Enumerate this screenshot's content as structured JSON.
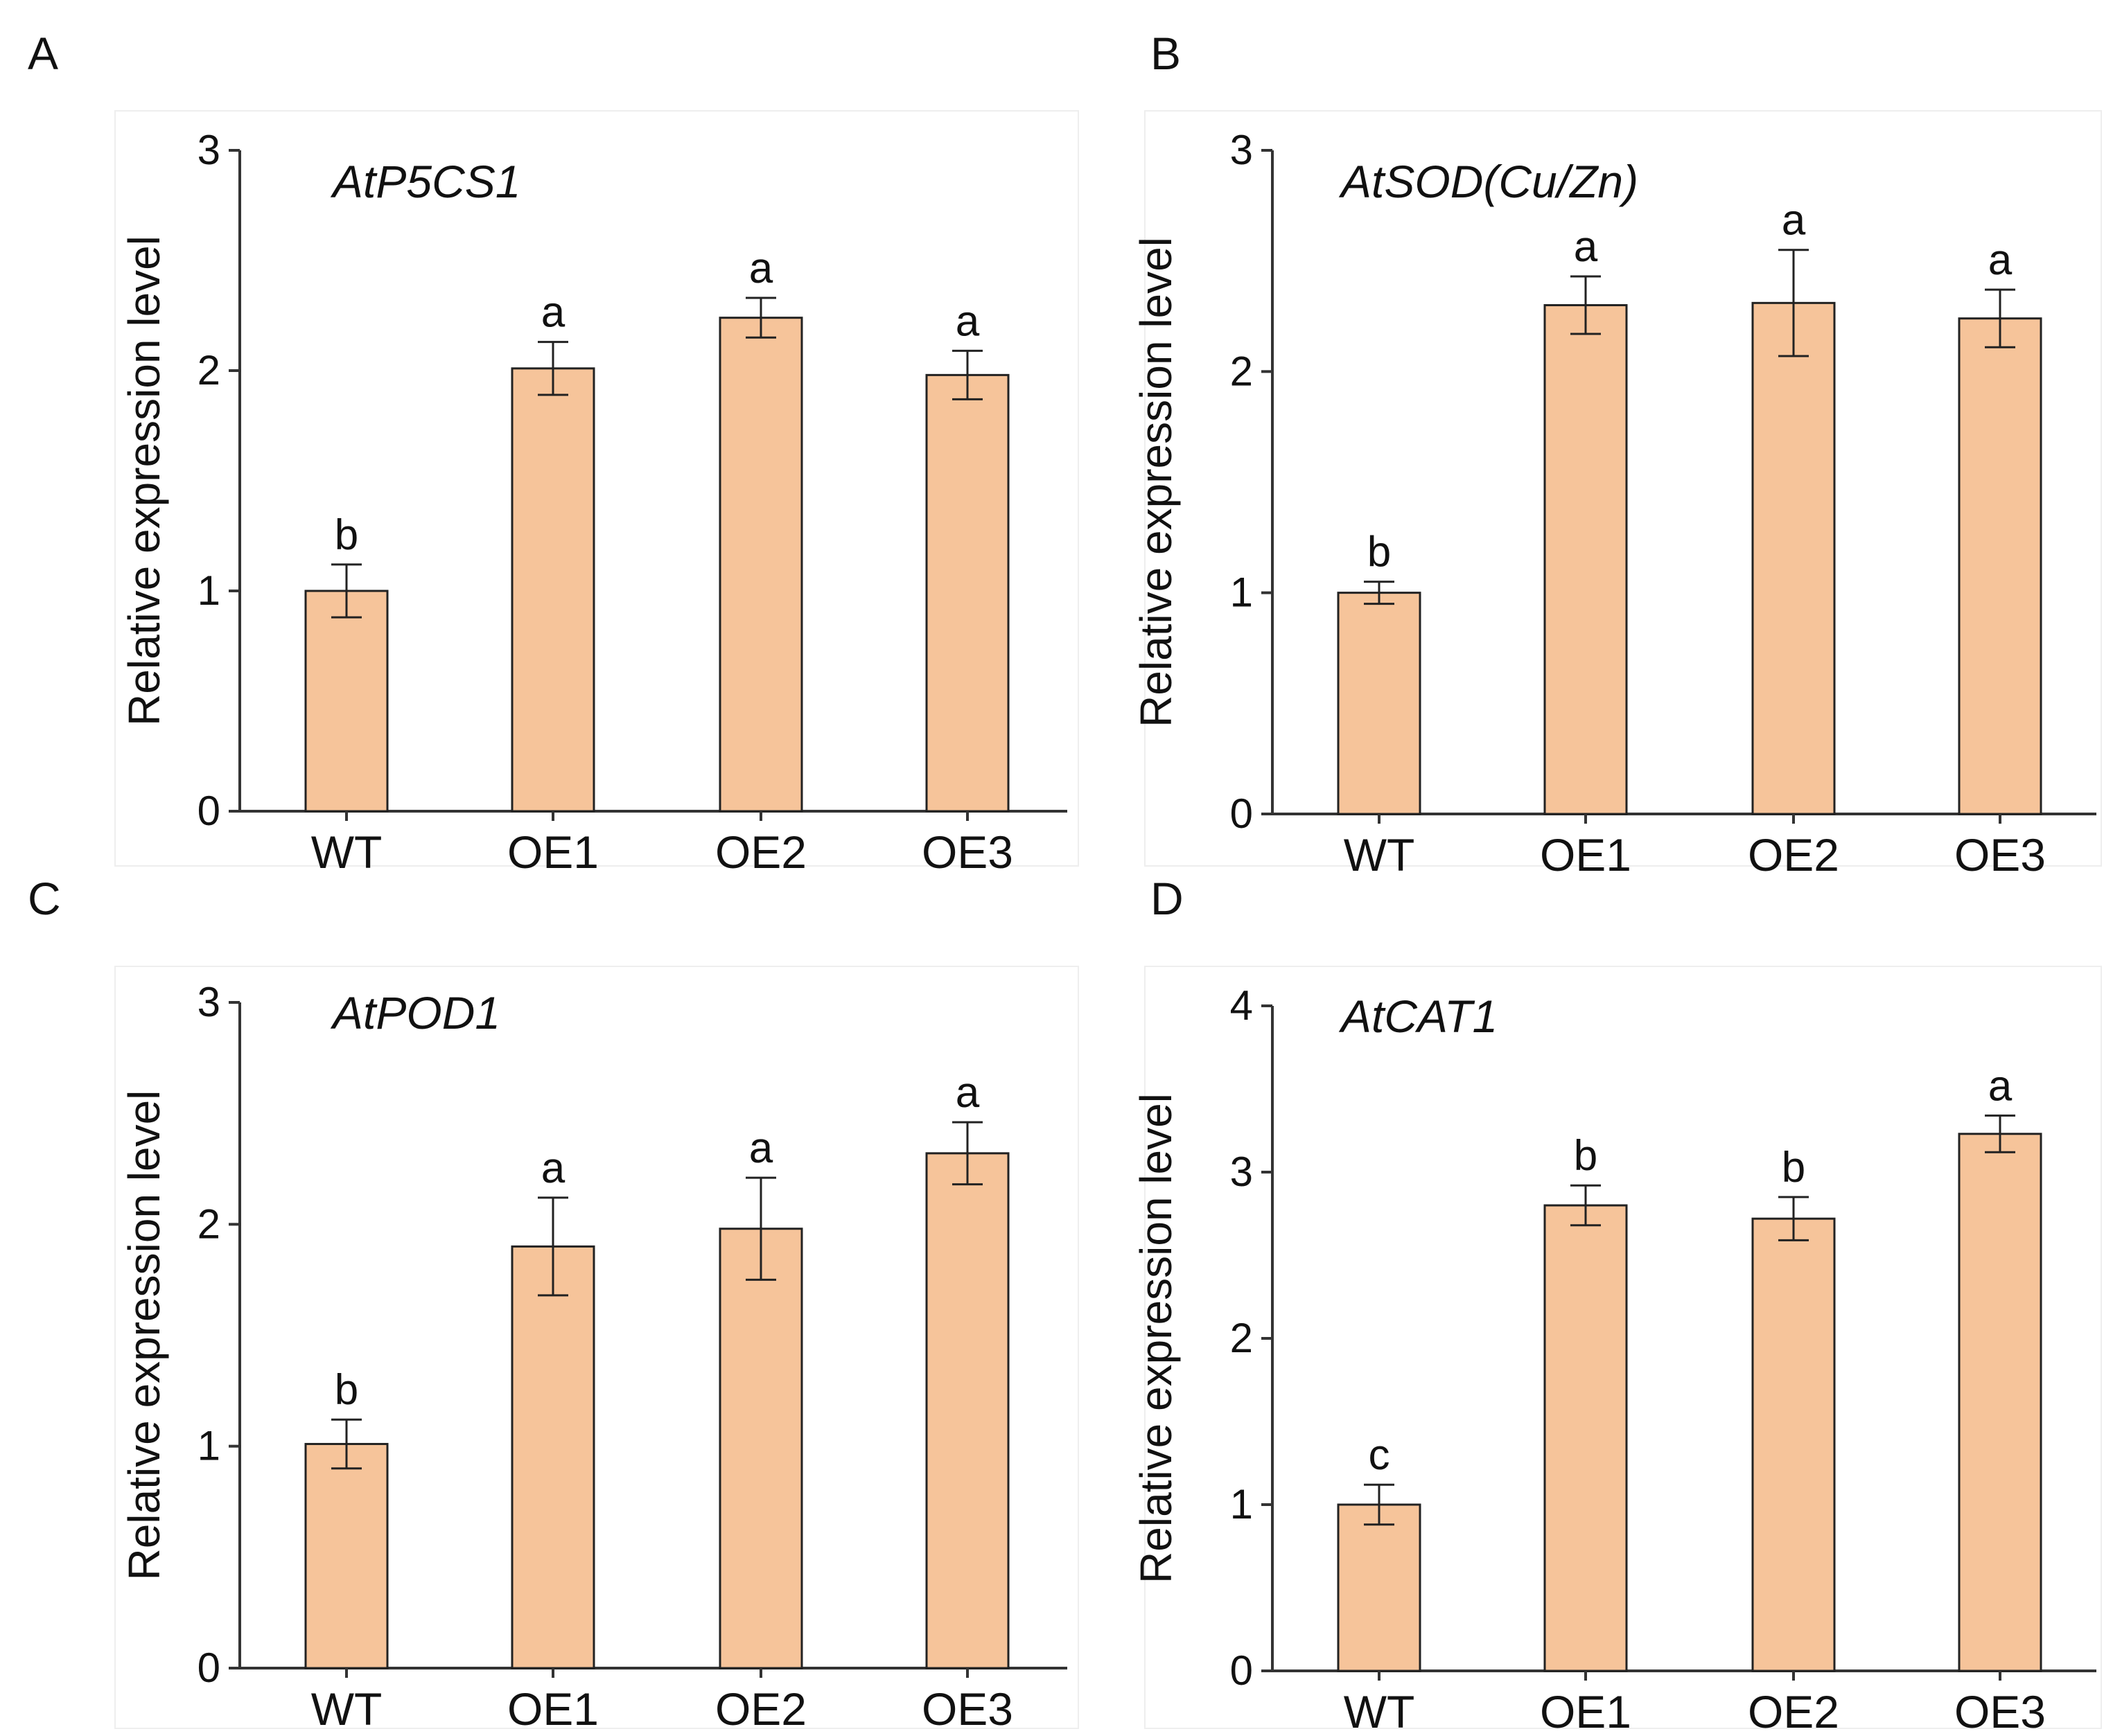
{
  "colors": {
    "bar_fill": "#f6c49a",
    "bar_stroke": "#222222",
    "axis": "#333333",
    "panel_border": "#eeeeee"
  },
  "chart_data": [
    {
      "panel": "A",
      "type": "bar",
      "title": "AtP5CS1",
      "ylabel": "Relative expression level",
      "xlabel": "",
      "categories": [
        "WT",
        "OE1",
        "OE2",
        "OE3"
      ],
      "values": [
        1.0,
        2.01,
        2.24,
        1.98
      ],
      "errors": [
        0.12,
        0.12,
        0.09,
        0.11
      ],
      "significance": [
        "b",
        "a",
        "a",
        "a"
      ],
      "ylim": [
        0,
        3
      ],
      "yticks": [
        "0",
        "1",
        "2",
        "3"
      ],
      "grid": false
    },
    {
      "panel": "B",
      "type": "bar",
      "title": "AtSOD(Cu/Zn)",
      "ylabel": "Relative expression level",
      "xlabel": "",
      "categories": [
        "WT",
        "OE1",
        "OE2",
        "OE3"
      ],
      "values": [
        1.0,
        2.3,
        2.31,
        2.24
      ],
      "errors": [
        0.05,
        0.13,
        0.24,
        0.13
      ],
      "significance": [
        "b",
        "a",
        "a",
        "a"
      ],
      "ylim": [
        0,
        3
      ],
      "yticks": [
        "0",
        "1",
        "2",
        "3"
      ],
      "grid": false
    },
    {
      "panel": "C",
      "type": "bar",
      "title": "AtPOD1",
      "ylabel": "Relative expression level",
      "xlabel": "",
      "categories": [
        "WT",
        "OE1",
        "OE2",
        "OE3"
      ],
      "values": [
        1.01,
        1.9,
        1.98,
        2.32
      ],
      "errors": [
        0.11,
        0.22,
        0.23,
        0.14
      ],
      "significance": [
        "b",
        "a",
        "a",
        "a"
      ],
      "ylim": [
        0,
        3
      ],
      "yticks": [
        "0",
        "1",
        "2",
        "3"
      ],
      "grid": false
    },
    {
      "panel": "D",
      "type": "bar",
      "title": "AtCAT1",
      "ylabel": "Relative expression level",
      "xlabel": "",
      "categories": [
        "WT",
        "OE1",
        "OE2",
        "OE3"
      ],
      "values": [
        1.0,
        2.8,
        2.72,
        3.23
      ],
      "errors": [
        0.12,
        0.12,
        0.13,
        0.11
      ],
      "significance": [
        "c",
        "b",
        "b",
        "a"
      ],
      "ylim": [
        0,
        4
      ],
      "yticks": [
        "0",
        "1",
        "2",
        "3",
        "4"
      ],
      "grid": false
    }
  ]
}
